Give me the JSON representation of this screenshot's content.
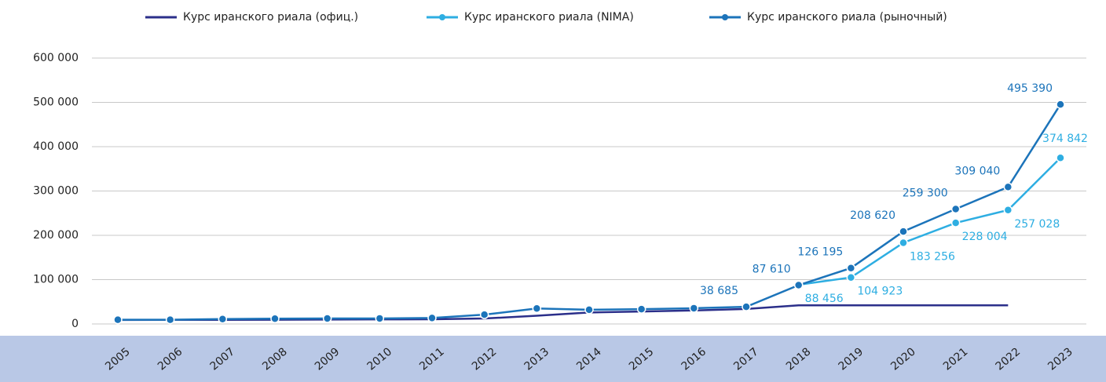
{
  "chart_data": {
    "type": "line",
    "categories": [
      "2005",
      "2006",
      "2007",
      "2008",
      "2009",
      "2010",
      "2011",
      "2012",
      "2013",
      "2014",
      "2015",
      "2016",
      "2017",
      "2018",
      "2019",
      "2020",
      "2021",
      "2022",
      "2023"
    ],
    "series": [
      {
        "name": "Курс иранского риала (офиц.)",
        "color": "#2b2f8a",
        "values": [
          9000,
          9200,
          9300,
          9600,
          9900,
          10300,
          10600,
          12300,
          18500,
          25900,
          28000,
          30500,
          33800,
          42000,
          42000,
          42000,
          42000,
          42000,
          null
        ]
      },
      {
        "name": "Курс иранского риала (NIMA)",
        "color": "#2eaee2",
        "values": [
          null,
          null,
          null,
          null,
          null,
          null,
          null,
          null,
          null,
          null,
          null,
          null,
          null,
          88456,
          104923,
          183256,
          228004,
          257028,
          374842
        ],
        "value_labels": [
          null,
          null,
          null,
          null,
          null,
          null,
          null,
          null,
          null,
          null,
          null,
          null,
          null,
          "88 456",
          "104 923",
          "183 256",
          "228 004",
          "257 028",
          "374 842"
        ]
      },
      {
        "name": "Курс иранского риала (рыночный)",
        "color": "#1c74ba",
        "values": [
          9500,
          9600,
          11000,
          12000,
          12300,
          12500,
          13500,
          21000,
          35000,
          32000,
          33500,
          35500,
          38685,
          87610,
          126195,
          208620,
          259300,
          309040,
          495390
        ],
        "value_labels": [
          null,
          null,
          null,
          null,
          null,
          null,
          null,
          null,
          null,
          null,
          null,
          null,
          "38 685",
          "87 610",
          "126 195",
          "208 620",
          "259 300",
          "309 040",
          "495 390"
        ]
      }
    ],
    "ylim": [
      0,
      600000
    ],
    "yticks": [
      0,
      {
        "value": 100000,
        "label": "100 000"
      },
      {
        "value": 200000,
        "label": "200 000"
      },
      {
        "value": 300000,
        "label": "300 000"
      },
      {
        "value": 400000,
        "label": "400 000"
      },
      {
        "value": 500000,
        "label": "500 000"
      },
      {
        "value": 600000,
        "label": "600 000"
      }
    ],
    "grid": true,
    "legend": "top"
  }
}
